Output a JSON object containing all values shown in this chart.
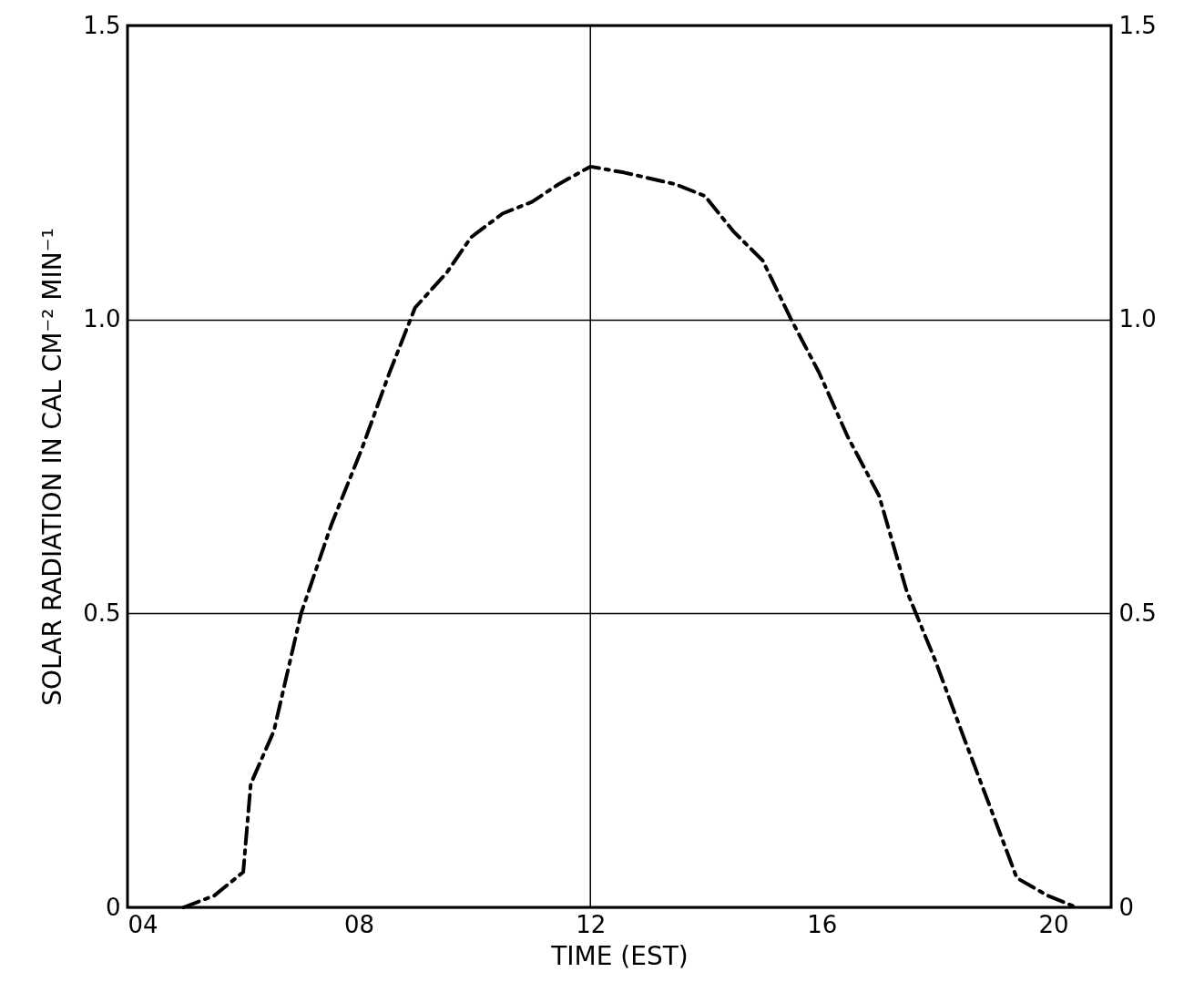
{
  "chart_data": {
    "type": "line",
    "xlabel": "TIME (EST)",
    "ylabel": "SOLAR RADIATION IN CAL CM⁻² MIN⁻¹",
    "x": [
      4.97,
      5.5,
      6.0,
      6.13,
      6.53,
      7.0,
      7.52,
      8.05,
      8.53,
      8.97,
      9.52,
      9.94,
      10.48,
      10.99,
      11.45,
      12.0,
      12.58,
      13.47,
      13.98,
      14.47,
      14.98,
      15.47,
      15.95,
      16.45,
      16.99,
      17.46,
      17.96,
      18.45,
      18.95,
      19.37,
      19.9,
      20.4
    ],
    "series": [
      {
        "color": "#000000",
        "values": [
          0,
          0.02,
          0.06,
          0.21,
          0.3,
          0.5,
          0.65,
          0.78,
          0.91,
          1.02,
          1.08,
          1.14,
          1.18,
          1.2,
          1.23,
          1.26,
          1.25,
          1.23,
          1.21,
          1.15,
          1.1,
          1.0,
          0.91,
          0.8,
          0.7,
          0.54,
          0.42,
          0.29,
          0.16,
          0.05,
          0.02,
          0
        ]
      }
    ],
    "xlim": [
      4,
      21
    ],
    "xticks": [
      {
        "value": 4,
        "label": "04"
      },
      {
        "value": 8,
        "label": "08"
      },
      12,
      16,
      20
    ],
    "ylim": [
      0,
      1.5
    ],
    "yticks": [
      0,
      0.5,
      {
        "value": 1,
        "label": "1.0"
      },
      1.5
    ],
    "y2lim": [
      0,
      1.5
    ],
    "y2ticks": [
      0,
      0.5,
      {
        "value": 1,
        "label": "1.0"
      },
      1.5
    ],
    "grid": "y",
    "ref_lines": [
      {
        "axis": "x",
        "value": 12
      }
    ],
    "line_style": "dashed"
  }
}
